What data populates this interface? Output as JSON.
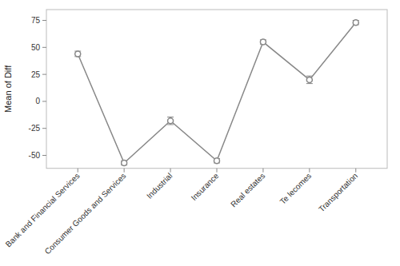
{
  "chart_data": {
    "type": "line",
    "categories": [
      "Bank and Financial Services",
      "Consumer Goods and Services",
      "Industrial",
      "Insurance",
      "Real estates",
      "Te lecomes",
      "Transportation"
    ],
    "values": [
      44,
      -57,
      -18,
      -55,
      55,
      20,
      73
    ],
    "errors": [
      2.5,
      2.0,
      3.5,
      2.0,
      2.0,
      3.5,
      2.0
    ],
    "ylabel": "Mean of Diff",
    "ylim": [
      -62,
      85
    ],
    "yticks": [
      -50,
      -25,
      0,
      25,
      50,
      75
    ],
    "grid": false,
    "marker": "circle",
    "color": "#888888"
  }
}
